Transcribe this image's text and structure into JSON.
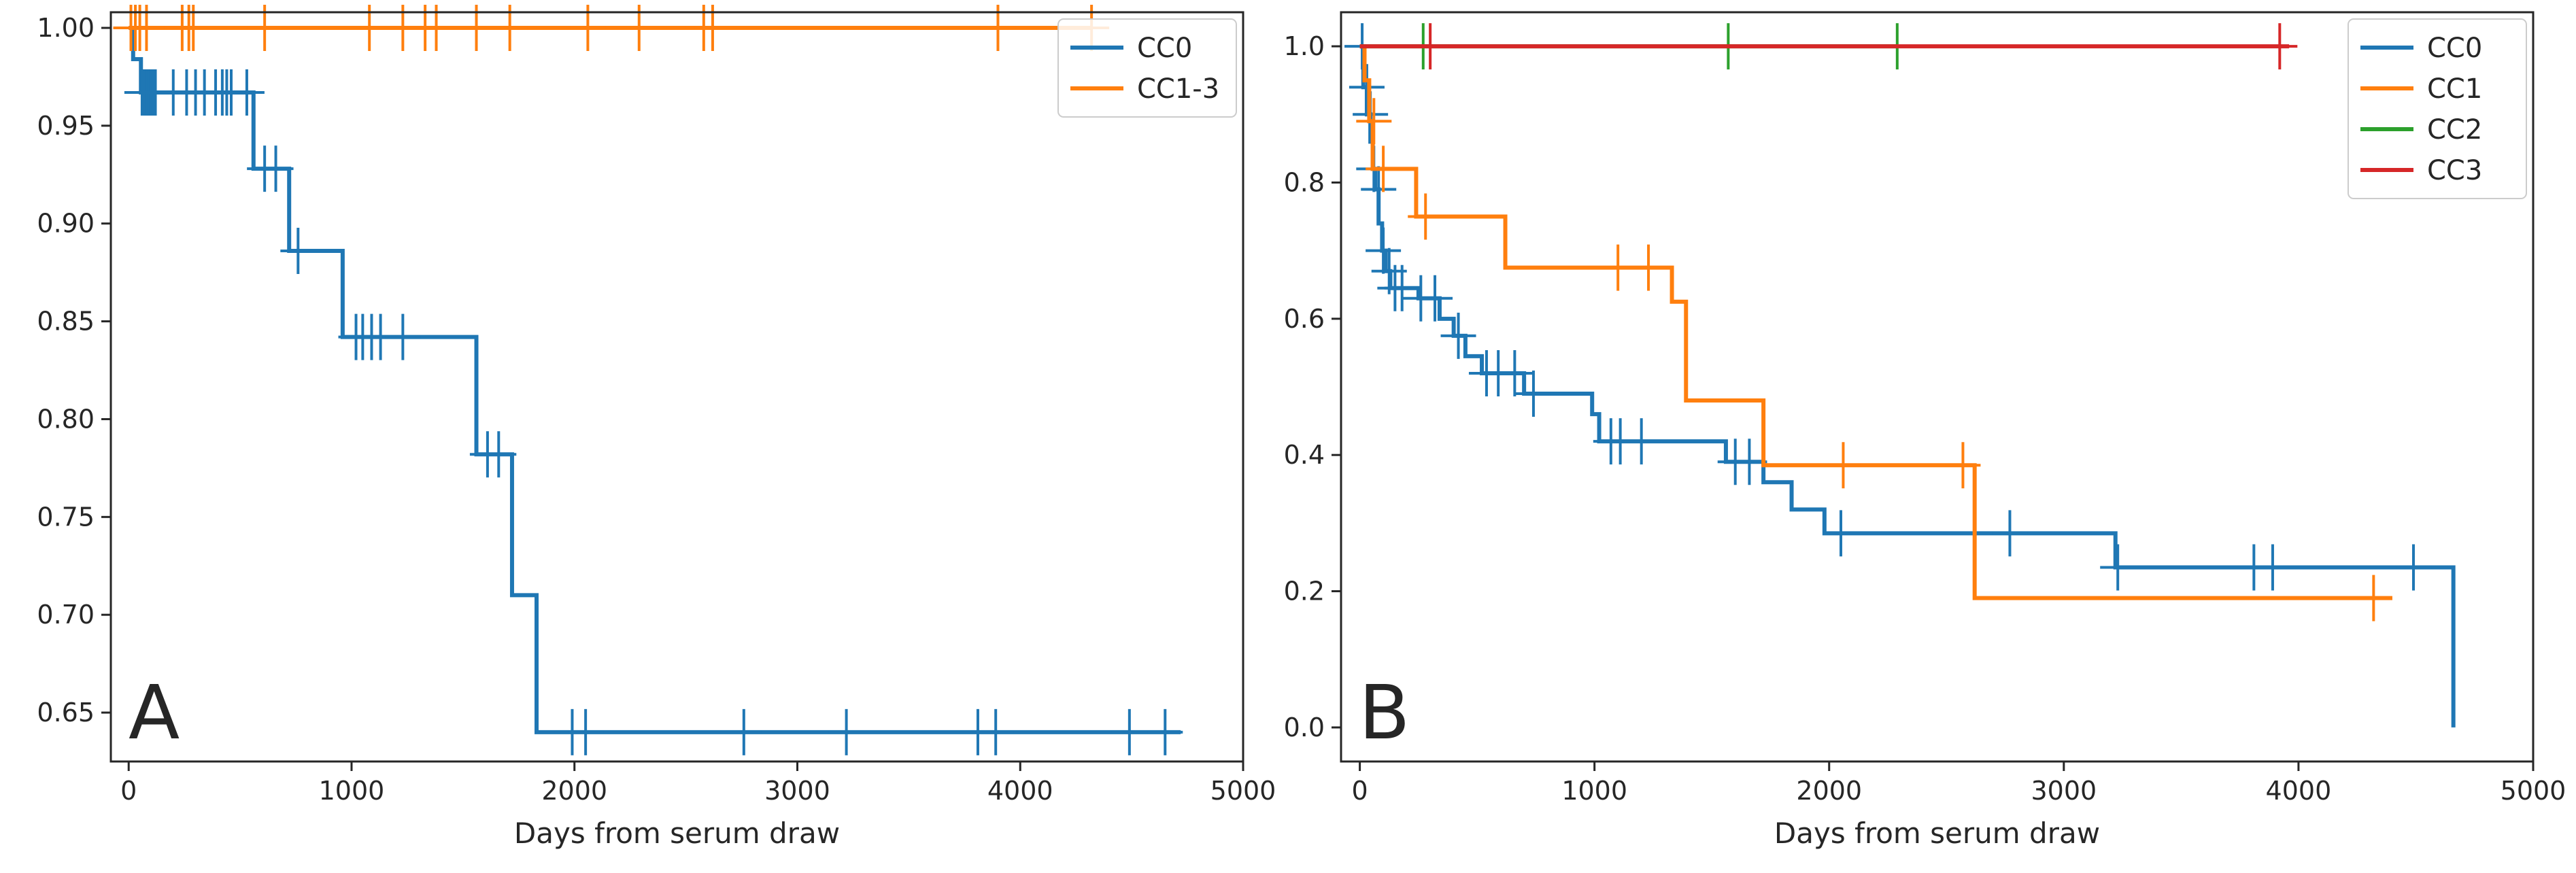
{
  "chart_data": [
    {
      "type": "line",
      "panel_label": "A",
      "xlabel": "Days from serum draw",
      "ylabel": "",
      "xlim": [
        -80,
        5000
      ],
      "ylim": [
        0.625,
        1.008
      ],
      "xticks": [
        0,
        1000,
        2000,
        3000,
        4000,
        5000
      ],
      "yticks": [
        0.65,
        0.7,
        0.75,
        0.8,
        0.85,
        0.9,
        0.95,
        1.0
      ],
      "ytick_labels": [
        "0.65",
        "0.70",
        "0.75",
        "0.80",
        "0.85",
        "0.90",
        "0.95",
        "1.00"
      ],
      "legend_position": "top-right",
      "series": [
        {
          "name": "CC0",
          "color": "#1f77b4",
          "steps": [
            [
              0,
              1.0
            ],
            [
              20,
              0.984
            ],
            [
              55,
              0.967
            ],
            [
              560,
              0.928
            ],
            [
              720,
              0.886
            ],
            [
              960,
              0.842
            ],
            [
              1560,
              0.782
            ],
            [
              1720,
              0.71
            ],
            [
              1830,
              0.64
            ],
            [
              4720,
              0.64
            ]
          ],
          "censored": [
            [
              60,
              0.967
            ],
            [
              70,
              0.967
            ],
            [
              80,
              0.967
            ],
            [
              90,
              0.967
            ],
            [
              100,
              0.967
            ],
            [
              110,
              0.967
            ],
            [
              120,
              0.967
            ],
            [
              200,
              0.967
            ],
            [
              260,
              0.967
            ],
            [
              300,
              0.967
            ],
            [
              340,
              0.967
            ],
            [
              390,
              0.967
            ],
            [
              420,
              0.967
            ],
            [
              440,
              0.967
            ],
            [
              460,
              0.967
            ],
            [
              530,
              0.967
            ],
            [
              610,
              0.928
            ],
            [
              660,
              0.928
            ],
            [
              760,
              0.886
            ],
            [
              1020,
              0.842
            ],
            [
              1050,
              0.842
            ],
            [
              1090,
              0.842
            ],
            [
              1130,
              0.842
            ],
            [
              1230,
              0.842
            ],
            [
              1610,
              0.782
            ],
            [
              1660,
              0.782
            ],
            [
              1990,
              0.64
            ],
            [
              2050,
              0.64
            ],
            [
              2760,
              0.64
            ],
            [
              3220,
              0.64
            ],
            [
              3810,
              0.64
            ],
            [
              3890,
              0.64
            ],
            [
              4490,
              0.64
            ],
            [
              4650,
              0.64
            ]
          ]
        },
        {
          "name": "CC1-3",
          "color": "#ff7f0e",
          "steps": [
            [
              0,
              1.0
            ],
            [
              4320,
              1.0
            ]
          ],
          "censored": [
            [
              10,
              1.0
            ],
            [
              30,
              1.0
            ],
            [
              50,
              1.0
            ],
            [
              80,
              1.0
            ],
            [
              240,
              1.0
            ],
            [
              270,
              1.0
            ],
            [
              290,
              1.0
            ],
            [
              610,
              1.0
            ],
            [
              1080,
              1.0
            ],
            [
              1230,
              1.0
            ],
            [
              1330,
              1.0
            ],
            [
              1380,
              1.0
            ],
            [
              1560,
              1.0
            ],
            [
              1710,
              1.0
            ],
            [
              2060,
              1.0
            ],
            [
              2290,
              1.0
            ],
            [
              2580,
              1.0
            ],
            [
              2620,
              1.0
            ],
            [
              3900,
              1.0
            ],
            [
              4320,
              1.0
            ]
          ]
        }
      ]
    },
    {
      "type": "line",
      "panel_label": "B",
      "xlabel": "Days from serum draw",
      "ylabel": "",
      "xlim": [
        -80,
        5000
      ],
      "ylim": [
        -0.05,
        1.05
      ],
      "xticks": [
        0,
        1000,
        2000,
        3000,
        4000,
        5000
      ],
      "yticks": [
        0.0,
        0.2,
        0.4,
        0.6,
        0.8,
        1.0
      ],
      "ytick_labels": [
        "0.0",
        "0.2",
        "0.4",
        "0.6",
        "0.8",
        "1.0"
      ],
      "legend_position": "top-right",
      "series": [
        {
          "name": "CC0",
          "color": "#1f77b4",
          "steps": [
            [
              0,
              1.0
            ],
            [
              15,
              0.94
            ],
            [
              30,
              0.9
            ],
            [
              45,
              0.86
            ],
            [
              55,
              0.82
            ],
            [
              65,
              0.79
            ],
            [
              80,
              0.74
            ],
            [
              95,
              0.7
            ],
            [
              110,
              0.67
            ],
            [
              130,
              0.645
            ],
            [
              250,
              0.63
            ],
            [
              340,
              0.6
            ],
            [
              400,
              0.575
            ],
            [
              450,
              0.545
            ],
            [
              520,
              0.52
            ],
            [
              700,
              0.49
            ],
            [
              990,
              0.46
            ],
            [
              1020,
              0.42
            ],
            [
              1560,
              0.39
            ],
            [
              1720,
              0.36
            ],
            [
              1840,
              0.32
            ],
            [
              1980,
              0.285
            ],
            [
              3220,
              0.235
            ],
            [
              4660,
              0.235
            ],
            [
              4660,
              0.0
            ]
          ],
          "censored": [
            [
              10,
              1.0
            ],
            [
              30,
              0.94
            ],
            [
              45,
              0.9
            ],
            [
              60,
              0.82
            ],
            [
              80,
              0.79
            ],
            [
              100,
              0.7
            ],
            [
              125,
              0.67
            ],
            [
              150,
              0.645
            ],
            [
              180,
              0.645
            ],
            [
              260,
              0.63
            ],
            [
              320,
              0.63
            ],
            [
              420,
              0.575
            ],
            [
              540,
              0.52
            ],
            [
              590,
              0.52
            ],
            [
              660,
              0.52
            ],
            [
              740,
              0.49
            ],
            [
              1070,
              0.42
            ],
            [
              1110,
              0.42
            ],
            [
              1200,
              0.42
            ],
            [
              1600,
              0.39
            ],
            [
              1660,
              0.39
            ],
            [
              2050,
              0.285
            ],
            [
              2770,
              0.285
            ],
            [
              3230,
              0.235
            ],
            [
              3810,
              0.235
            ],
            [
              3890,
              0.235
            ],
            [
              4490,
              0.235
            ]
          ]
        },
        {
          "name": "CC1",
          "color": "#ff7f0e",
          "steps": [
            [
              0,
              1.0
            ],
            [
              20,
              0.95
            ],
            [
              40,
              0.89
            ],
            [
              55,
              0.82
            ],
            [
              240,
              0.75
            ],
            [
              620,
              0.675
            ],
            [
              1330,
              0.625
            ],
            [
              1390,
              0.48
            ],
            [
              1720,
              0.385
            ],
            [
              2620,
              0.19
            ],
            [
              4400,
              0.19
            ]
          ],
          "censored": [
            [
              60,
              0.89
            ],
            [
              100,
              0.82
            ],
            [
              280,
              0.75
            ],
            [
              1100,
              0.675
            ],
            [
              1230,
              0.675
            ],
            [
              2060,
              0.385
            ],
            [
              2570,
              0.385
            ],
            [
              4320,
              0.19
            ]
          ]
        },
        {
          "name": "CC2",
          "color": "#2ca02c",
          "steps": [
            [
              0,
              1.0
            ],
            [
              2290,
              1.0
            ]
          ],
          "censored": [
            [
              270,
              1.0
            ],
            [
              1570,
              1.0
            ],
            [
              2290,
              1.0
            ]
          ]
        },
        {
          "name": "CC3",
          "color": "#d62728",
          "steps": [
            [
              0,
              1.0
            ],
            [
              3960,
              1.0
            ]
          ],
          "censored": [
            [
              300,
              1.0
            ],
            [
              3920,
              1.0
            ]
          ]
        }
      ]
    }
  ]
}
